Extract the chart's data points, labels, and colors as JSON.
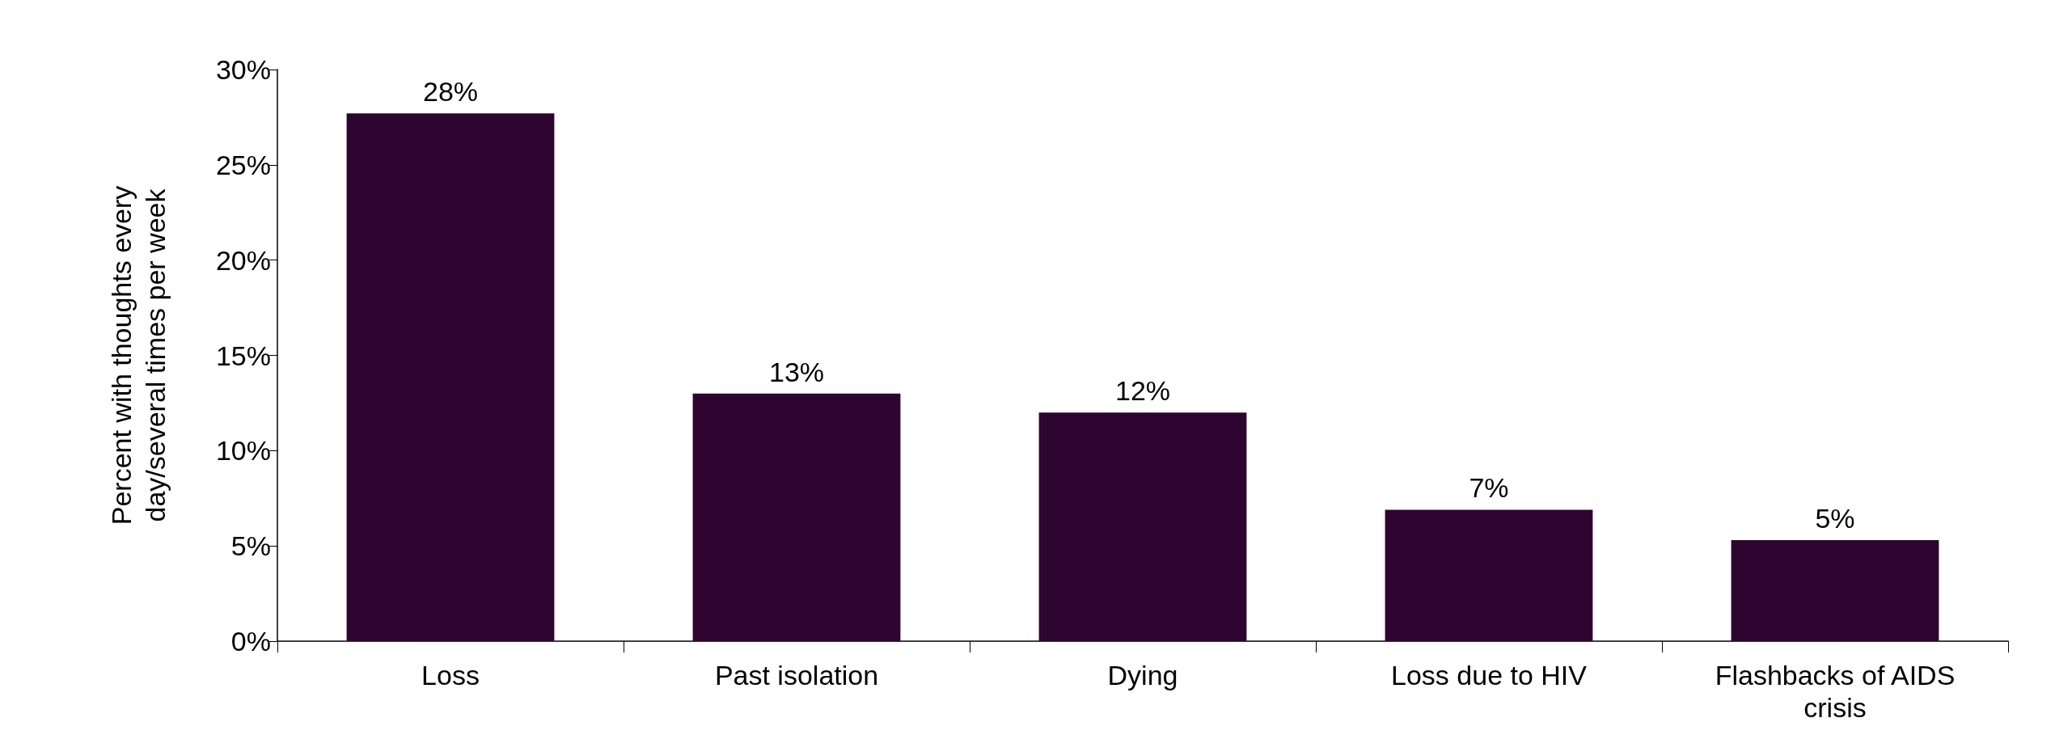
{
  "chart_data": {
    "type": "bar",
    "ylabel": "Percent with thoughts every day/several times per week",
    "categories": [
      "Loss",
      "Past isolation",
      "Dying",
      "Loss due to HIV",
      "Flashbacks of AIDS crisis"
    ],
    "values": [
      27.7,
      13,
      12,
      6.9,
      5.3
    ],
    "value_labels": [
      "28%",
      "13%",
      "12%",
      "7%",
      "5%"
    ],
    "color": "#2e0530",
    "ylim": [
      0,
      30
    ],
    "yticks": [
      {
        "value": 0,
        "label": "0%"
      },
      {
        "value": 5,
        "label": "5%"
      },
      {
        "value": 10,
        "label": "10%"
      },
      {
        "value": 15,
        "label": "15%"
      },
      {
        "value": 20,
        "label": "20%"
      },
      {
        "value": 25,
        "label": "25%"
      },
      {
        "value": 30,
        "label": "30%"
      }
    ],
    "grid": false
  }
}
